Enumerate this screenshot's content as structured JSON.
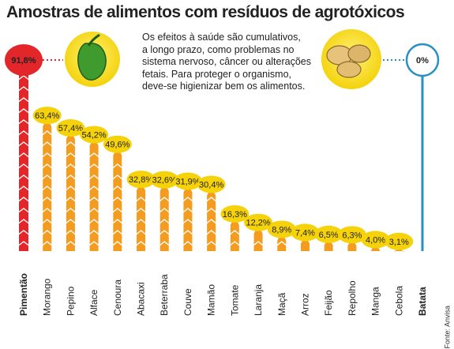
{
  "title": "Amostras de alimentos com resíduos de agrotóxicos",
  "description_lines": [
    "Os efeitos à saúde são cumulativos,",
    "a longo prazo, como problemas no",
    "sistema nervoso, câncer ou alterações",
    "fetais. Para proteger o organismo,",
    "deve-se higienizar bem os alimentos."
  ],
  "source": "Fonte: Anvisa",
  "colors": {
    "max": "#e2262a",
    "min": "#2a8fc4",
    "bars": "#f39c1f",
    "badge": "#f5d20a"
  },
  "chart_data": {
    "type": "bar",
    "title": "Amostras de alimentos com resíduos de agrotóxicos",
    "categories": [
      "Pimentão",
      "Morango",
      "Pepino",
      "Alface",
      "Cenoura",
      "Abacaxi",
      "Beterraba",
      "Couve",
      "Mamão",
      "Tomate",
      "Laranja",
      "Maçã",
      "Arroz",
      "Feijão",
      "Repolho",
      "Manga",
      "Cebola",
      "Batata"
    ],
    "value_labels": [
      "91,8%",
      "63,4%",
      "57,4%",
      "54,2%",
      "49,6%",
      "32,8%",
      "32,6%",
      "31,9%",
      "30,4%",
      "16,3%",
      "12,2%",
      "8,9%",
      "7,4%",
      "6,5%",
      "6,3%",
      "4,0%",
      "3,1%",
      "0%"
    ],
    "values": [
      91.8,
      63.4,
      57.4,
      54.2,
      49.6,
      32.8,
      32.6,
      31.9,
      30.4,
      16.3,
      12.2,
      8.9,
      7.4,
      6.5,
      6.3,
      4.0,
      3.1,
      0
    ],
    "highlight": {
      "max": "Pimentão",
      "min": "Batata"
    },
    "unit": "%",
    "ylim": [
      0,
      100
    ],
    "grid": false,
    "legend": "none"
  }
}
